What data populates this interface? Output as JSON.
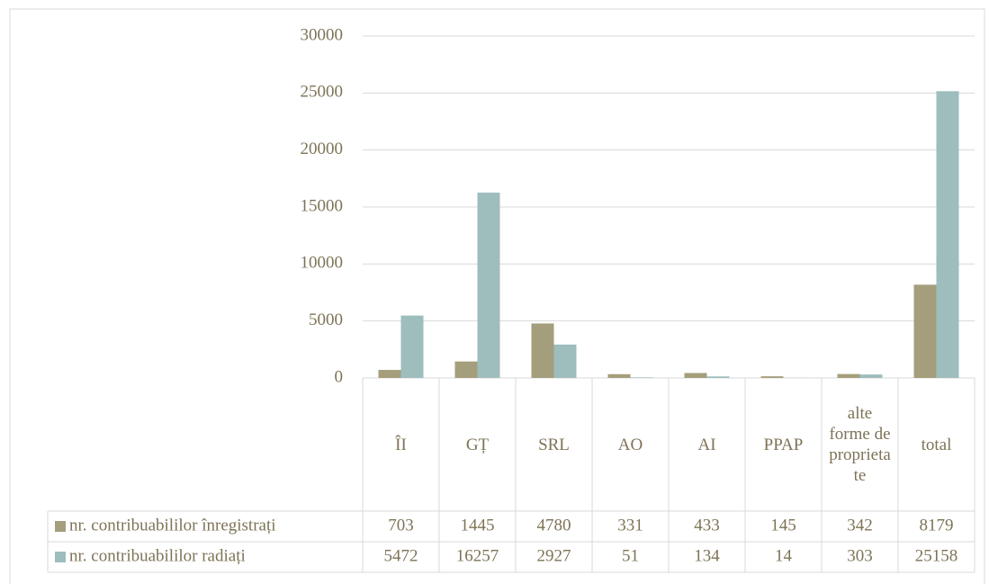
{
  "chart_data": {
    "type": "bar",
    "categories": [
      "ÎI",
      "GȚ",
      "SRL",
      "AO",
      "AI",
      "PPAP",
      "alte forme de proprietate",
      "total"
    ],
    "series": [
      {
        "name": "nr. contribuabililor înregistrați",
        "color": "#a59e7c",
        "values": [
          703,
          1445,
          4780,
          331,
          433,
          145,
          342,
          8179
        ]
      },
      {
        "name": "nr. contribuabililor radiați",
        "color": "#9ebdbd",
        "values": [
          5472,
          16257,
          2927,
          51,
          134,
          14,
          303,
          25158
        ]
      }
    ],
    "ylim": [
      0,
      30000
    ],
    "yticks": [
      0,
      5000,
      10000,
      15000,
      20000,
      25000,
      30000
    ],
    "grid": true
  }
}
